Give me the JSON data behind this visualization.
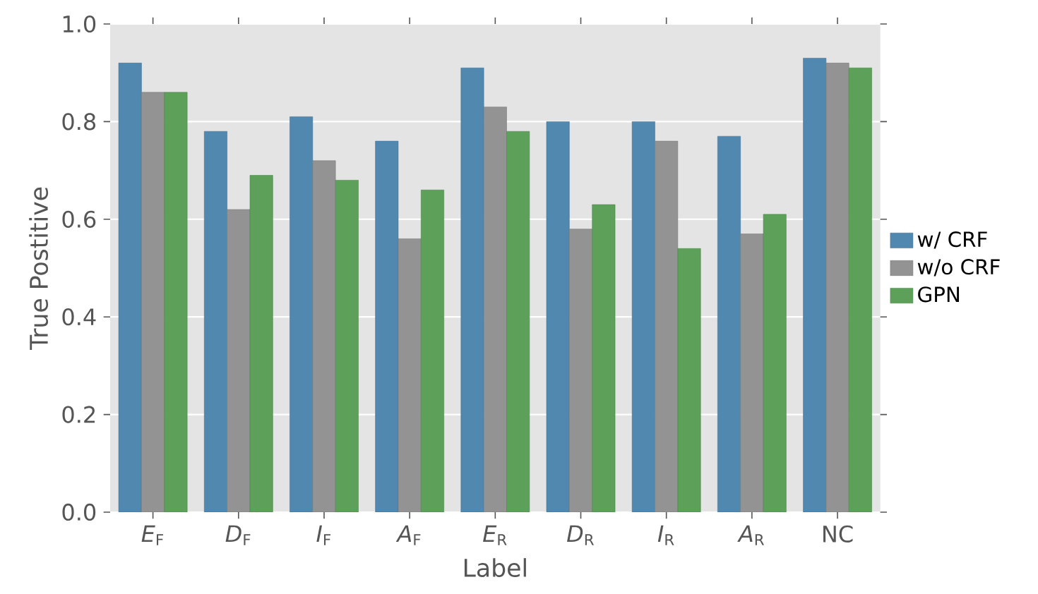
{
  "chart_data": {
    "type": "bar",
    "xlabel": "Label",
    "ylabel": "True Postitive",
    "categories": [
      "*E*$_{F}$",
      "*D*$_{F}$",
      "*I*$_{F}$",
      "*A*$_{F}$",
      "*E*$_{R}$",
      "*D*$_{R}$",
      "*I*$_{R}$",
      "*A*$_{R}$",
      "NC"
    ],
    "series": [
      {
        "name": "w/ CRF",
        "color": "#5088b0",
        "values": [
          0.92,
          0.78,
          0.81,
          0.76,
          0.91,
          0.8,
          0.8,
          0.77,
          0.93
        ]
      },
      {
        "name": "w/o CRF",
        "color": "#939393",
        "values": [
          0.86,
          0.62,
          0.72,
          0.56,
          0.83,
          0.58,
          0.76,
          0.57,
          0.92
        ]
      },
      {
        "name": "GPN",
        "color": "#5ca05a",
        "values": [
          0.86,
          0.69,
          0.68,
          0.66,
          0.78,
          0.63,
          0.54,
          0.61,
          0.91
        ]
      }
    ],
    "ylim": [
      0,
      1.0
    ],
    "yticks": [
      {
        "value": 0,
        "label": "0.0"
      },
      {
        "value": 0.2,
        "label": "0.2"
      },
      {
        "value": 0.4,
        "label": "0.4"
      },
      {
        "value": 0.6,
        "label": "0.6"
      },
      {
        "value": 0.8,
        "label": "0.8"
      },
      {
        "value": 1.0,
        "label": "1.0"
      }
    ],
    "grid": "y",
    "legend": "right"
  }
}
